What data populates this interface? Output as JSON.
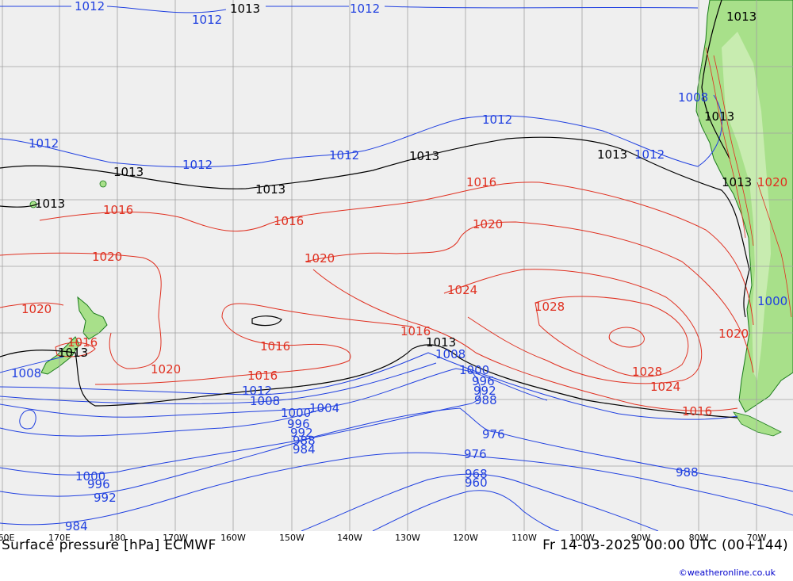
{
  "map": {
    "title": "Surface pressure [hPa] ECMWF",
    "valid_time": "Fr 14-03-2025 00:00 UTC (00+144)",
    "credit": "©weatheronline.co.uk",
    "longitude_labels": [
      "60E",
      "170E",
      "180",
      "170W",
      "160W",
      "150W",
      "140W",
      "130W",
      "120W",
      "110W",
      "100W",
      "90W",
      "80W",
      "70W"
    ],
    "colors": {
      "ocean": "#efefef",
      "land": "#a8e08a",
      "grid": "#a0a0a0",
      "high_isobar": "#e03020",
      "low_isobar": "#2040e0",
      "reference_isobar": "#000000"
    },
    "isobar_labels": {
      "black": [
        "1013",
        "1013",
        "1013",
        "1013",
        "1013",
        "1013",
        "1013",
        "1013",
        "1013",
        "1013",
        "1013"
      ],
      "red": [
        "1016",
        "1016",
        "1016",
        "1016",
        "1016",
        "1016",
        "1016",
        "1020",
        "1020",
        "1020",
        "1020",
        "1020",
        "1020",
        "1024",
        "1024",
        "1028",
        "1028",
        "1016",
        "1020"
      ],
      "blue": [
        "1012",
        "1012",
        "1012",
        "1012",
        "1012",
        "1012",
        "1012",
        "1012",
        "1012",
        "1008",
        "1008",
        "1008",
        "1004",
        "1000",
        "996",
        "992",
        "988",
        "984",
        "1000",
        "996",
        "992",
        "988",
        "984",
        "976",
        "976",
        "968",
        "960",
        "988",
        "1000",
        "996",
        "992",
        "1000",
        "1008"
      ]
    }
  }
}
